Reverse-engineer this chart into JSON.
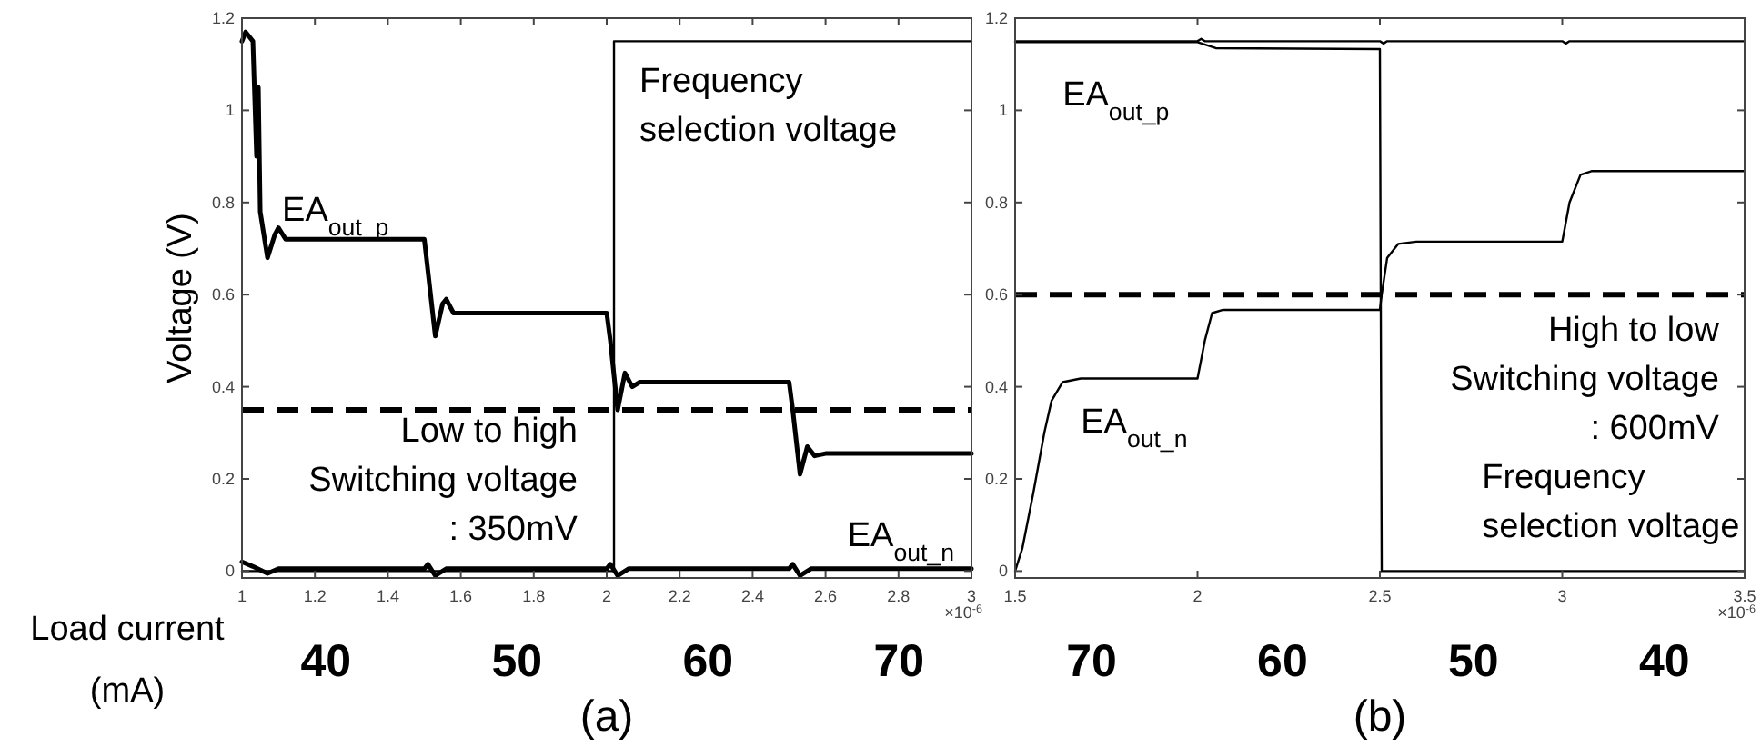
{
  "chart_data": [
    {
      "type": "line",
      "title": "(a)",
      "ylabel": "Voltage (V)",
      "x2label": "Load current\n(mA)",
      "xlim": [
        1,
        3
      ],
      "ylim": [
        -0.015,
        1.2
      ],
      "xticks": [
        1,
        1.2,
        1.4,
        1.6,
        1.8,
        2,
        2.2,
        2.4,
        2.6,
        2.8,
        3
      ],
      "yticks": [
        0,
        0.2,
        0.4,
        0.6,
        0.8,
        1,
        1.2
      ],
      "x2lim": [
        35.6,
        73.8
      ],
      "x2ticks": [
        40,
        50,
        60,
        70
      ],
      "grid": false,
      "line_style": "solid",
      "marker": "none",
      "series": [
        {
          "name": "EA$_{out_p}$",
          "color": "#000000",
          "x": [
            1,
            1.01,
            1.03,
            1.04,
            1.045,
            1.05,
            1.07,
            1.09,
            1.1,
            1.12,
            1.5,
            1.51,
            1.53,
            1.55,
            1.56,
            1.58,
            2,
            2.01,
            2.03,
            2.05,
            2.07,
            2.09,
            2.5,
            2.51,
            2.53,
            2.55,
            2.57,
            2.6,
            3
          ],
          "values": [
            1.15,
            1.17,
            1.15,
            0.9,
            1.05,
            0.78,
            0.68,
            0.73,
            0.745,
            0.72,
            0.72,
            0.65,
            0.51,
            0.58,
            0.59,
            0.56,
            0.56,
            0.5,
            0.35,
            0.43,
            0.4,
            0.41,
            0.41,
            0.35,
            0.21,
            0.27,
            0.25,
            0.255,
            0.255
          ]
        },
        {
          "name": "EA$_{out_n}$",
          "color": "#000000",
          "x": [
            1,
            1.03,
            1.07,
            1.1,
            1.5,
            1.51,
            1.53,
            1.56,
            2,
            2.01,
            2.03,
            2.06,
            2.5,
            2.51,
            2.53,
            2.56,
            3
          ],
          "values": [
            0.02,
            0.01,
            -0.005,
            0.005,
            0.005,
            0.015,
            -0.01,
            0.005,
            0.005,
            0.015,
            -0.01,
            0.005,
            0.005,
            0.015,
            -0.01,
            0.005,
            0.005
          ]
        },
        {
          "name": "Frequency\nselection voltage",
          "color": "#000000",
          "x": [
            1,
            2.02,
            2.02,
            3
          ],
          "values": [
            0,
            0,
            1.15,
            1.15
          ]
        }
      ],
      "ref_lines": [
        {
          "axis": "y",
          "value": 0.35,
          "label": "Low to high\nSwitching voltage\n: 350mV",
          "line_style": "dashed",
          "color": "#000000"
        }
      ],
      "annotations": [
        "×10$^{-6}$"
      ]
    },
    {
      "type": "line",
      "title": "(b)",
      "xlim": [
        1.5,
        3.5
      ],
      "ylim": [
        -0.015,
        1.2
      ],
      "xticks": [
        1.5,
        2,
        2.5,
        3,
        3.5
      ],
      "yticks": [
        0,
        0.2,
        0.4,
        0.6,
        0.8,
        1,
        1.2
      ],
      "x2lim": [
        74,
        35.8
      ],
      "x2ticks": [
        70,
        60,
        50,
        40
      ],
      "grid": false,
      "line_style": "solid",
      "marker": "none",
      "series": [
        {
          "name": "EA$_{out_p}$",
          "color": "#000000",
          "x": [
            1.5,
            2,
            2.01,
            2.02,
            2.5,
            2.51,
            2.52,
            3,
            3.01,
            3.02,
            3.5
          ],
          "values": [
            1.15,
            1.15,
            1.155,
            1.15,
            1.15,
            1.145,
            1.15,
            1.15,
            1.145,
            1.15,
            1.15
          ]
        },
        {
          "name": "EA$_{out_n}$",
          "color": "#000000",
          "x": [
            1.5,
            1.52,
            1.55,
            1.58,
            1.6,
            1.63,
            1.68,
            2,
            2.02,
            2.04,
            2.07,
            2.5,
            2.505,
            2.52,
            2.55,
            2.6,
            3,
            3.02,
            3.05,
            3.08,
            3.5
          ],
          "values": [
            0,
            0.05,
            0.17,
            0.3,
            0.37,
            0.41,
            0.418,
            0.418,
            0.5,
            0.56,
            0.567,
            0.567,
            0.6,
            0.68,
            0.71,
            0.715,
            0.715,
            0.8,
            0.86,
            0.868,
            0.868
          ]
        },
        {
          "name": "Frequency\nselection voltage",
          "color": "#000000",
          "x": [
            1.5,
            2,
            2.05,
            2.5,
            2.505,
            3.5
          ],
          "values": [
            1.148,
            1.148,
            1.135,
            1.133,
            0,
            0
          ]
        }
      ],
      "ref_lines": [
        {
          "axis": "y",
          "value": 0.6,
          "label": "High to low\nSwitching voltage\n: 600mV",
          "line_style": "dashed",
          "color": "#000000"
        }
      ],
      "annotations": [
        "×10$^{-6}$"
      ]
    }
  ]
}
